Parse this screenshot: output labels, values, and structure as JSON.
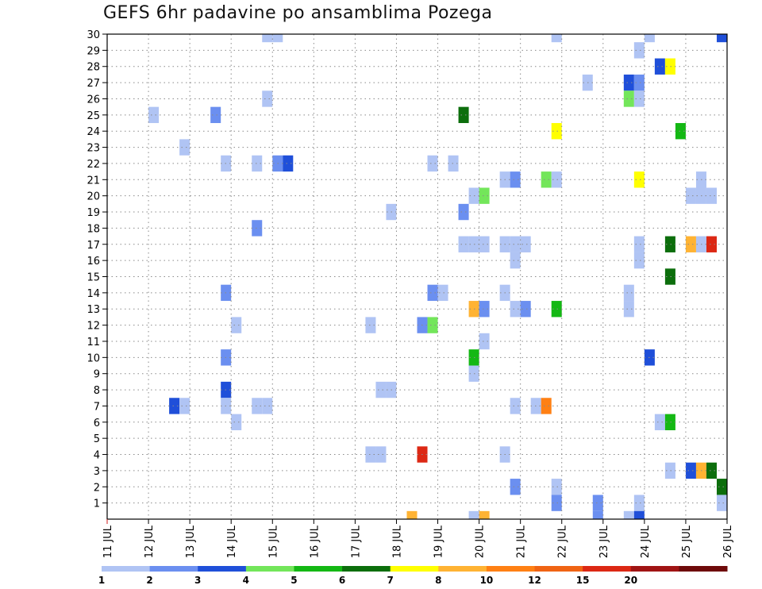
{
  "chart_data": {
    "type": "heatmap",
    "title": "GEFS 6hr padavine po ansamblima Pozega",
    "xlabel": "",
    "ylabel": "",
    "x_ticks": [
      "11 JUL",
      "12 JUL",
      "13 JUL",
      "14 JUL",
      "15 JUL",
      "16 JUL",
      "17 JUL",
      "18 JUL",
      "19 JUL",
      "20 JUL",
      "21 JUL",
      "22 JUL",
      "23 JUL",
      "24 JUL",
      "25 JUL",
      "26 JUL"
    ],
    "xlim": [
      11,
      26
    ],
    "y_ticks": [
      1,
      2,
      3,
      4,
      5,
      6,
      7,
      8,
      9,
      10,
      11,
      12,
      13,
      14,
      15,
      16,
      17,
      18,
      19,
      20,
      21,
      22,
      23,
      24,
      25,
      26,
      27,
      28,
      29,
      30
    ],
    "ylim": [
      0,
      30
    ],
    "grid": true,
    "legend": {
      "placement": "bottom",
      "bins": [
        {
          "label": "1",
          "color": "#b0c4f4"
        },
        {
          "label": "2",
          "color": "#6b8ff0"
        },
        {
          "label": "3",
          "color": "#1f4fd9"
        },
        {
          "label": "4",
          "color": "#73e65a"
        },
        {
          "label": "5",
          "color": "#14b814"
        },
        {
          "label": "6",
          "color": "#0c6e0c"
        },
        {
          "label": "7",
          "color": "#ffff00"
        },
        {
          "label": "8",
          "color": "#ffb333"
        },
        {
          "label": "10",
          "color": "#ff8014"
        },
        {
          "label": "12",
          "color": "#f06414"
        },
        {
          "label": "15",
          "color": "#dc2814"
        },
        {
          "label": "20",
          "color": "#a01414"
        },
        {
          "label": "",
          "color": "#6e0a0a"
        }
      ]
    },
    "cells": [
      {
        "t": 14.75,
        "m": 30,
        "v": 1
      },
      {
        "t": 15.0,
        "m": 30,
        "v": 1
      },
      {
        "t": 21.75,
        "m": 30,
        "v": 1
      },
      {
        "t": 24.0,
        "m": 30,
        "v": 1
      },
      {
        "t": 25.75,
        "m": 30,
        "v": 3
      },
      {
        "t": 23.75,
        "m": 29,
        "v": 1
      },
      {
        "t": 24.25,
        "m": 28,
        "v": 3
      },
      {
        "t": 24.5,
        "m": 28,
        "v": 7
      },
      {
        "t": 22.5,
        "m": 27,
        "v": 1
      },
      {
        "t": 23.5,
        "m": 27,
        "v": 3
      },
      {
        "t": 23.75,
        "m": 27,
        "v": 2
      },
      {
        "t": 14.75,
        "m": 26,
        "v": 1
      },
      {
        "t": 23.5,
        "m": 26,
        "v": 4
      },
      {
        "t": 23.75,
        "m": 26,
        "v": 1
      },
      {
        "t": 12.0,
        "m": 25,
        "v": 1
      },
      {
        "t": 13.5,
        "m": 25,
        "v": 2
      },
      {
        "t": 19.5,
        "m": 25,
        "v": 6
      },
      {
        "t": 21.75,
        "m": 24,
        "v": 7
      },
      {
        "t": 24.75,
        "m": 24,
        "v": 5
      },
      {
        "t": 12.75,
        "m": 23,
        "v": 1
      },
      {
        "t": 13.75,
        "m": 22,
        "v": 1
      },
      {
        "t": 14.5,
        "m": 22,
        "v": 1
      },
      {
        "t": 15.0,
        "m": 22,
        "v": 2
      },
      {
        "t": 15.25,
        "m": 22,
        "v": 3
      },
      {
        "t": 18.75,
        "m": 22,
        "v": 1
      },
      {
        "t": 19.25,
        "m": 22,
        "v": 1
      },
      {
        "t": 20.5,
        "m": 21,
        "v": 1
      },
      {
        "t": 20.75,
        "m": 21,
        "v": 2
      },
      {
        "t": 21.5,
        "m": 21,
        "v": 4
      },
      {
        "t": 21.75,
        "m": 21,
        "v": 1
      },
      {
        "t": 23.75,
        "m": 21,
        "v": 7
      },
      {
        "t": 25.25,
        "m": 21,
        "v": 1
      },
      {
        "t": 19.75,
        "m": 20,
        "v": 1
      },
      {
        "t": 20.0,
        "m": 20,
        "v": 4
      },
      {
        "t": 25.0,
        "m": 20,
        "v": 1
      },
      {
        "t": 25.25,
        "m": 20,
        "v": 1
      },
      {
        "t": 25.5,
        "m": 20,
        "v": 1
      },
      {
        "t": 17.75,
        "m": 19,
        "v": 1
      },
      {
        "t": 19.5,
        "m": 19,
        "v": 2
      },
      {
        "t": 14.5,
        "m": 18,
        "v": 2
      },
      {
        "t": 19.5,
        "m": 17,
        "v": 1
      },
      {
        "t": 19.75,
        "m": 17,
        "v": 1
      },
      {
        "t": 20.0,
        "m": 17,
        "v": 1
      },
      {
        "t": 20.5,
        "m": 17,
        "v": 1
      },
      {
        "t": 20.75,
        "m": 17,
        "v": 1
      },
      {
        "t": 21.0,
        "m": 17,
        "v": 1
      },
      {
        "t": 23.75,
        "m": 17,
        "v": 1
      },
      {
        "t": 24.5,
        "m": 17,
        "v": 6
      },
      {
        "t": 25.0,
        "m": 17,
        "v": 8
      },
      {
        "t": 25.25,
        "m": 17,
        "v": 1
      },
      {
        "t": 25.5,
        "m": 17,
        "v": 15
      },
      {
        "t": 20.75,
        "m": 16,
        "v": 1
      },
      {
        "t": 23.75,
        "m": 16,
        "v": 1
      },
      {
        "t": 24.5,
        "m": 15,
        "v": 6
      },
      {
        "t": 13.75,
        "m": 14,
        "v": 2
      },
      {
        "t": 18.75,
        "m": 14,
        "v": 2
      },
      {
        "t": 19.0,
        "m": 14,
        "v": 1
      },
      {
        "t": 20.5,
        "m": 14,
        "v": 1
      },
      {
        "t": 23.5,
        "m": 14,
        "v": 1
      },
      {
        "t": 19.75,
        "m": 13,
        "v": 8
      },
      {
        "t": 20.0,
        "m": 13,
        "v": 2
      },
      {
        "t": 20.75,
        "m": 13,
        "v": 1
      },
      {
        "t": 21.0,
        "m": 13,
        "v": 2
      },
      {
        "t": 21.75,
        "m": 13,
        "v": 5
      },
      {
        "t": 23.5,
        "m": 13,
        "v": 1
      },
      {
        "t": 14.0,
        "m": 12,
        "v": 1
      },
      {
        "t": 17.25,
        "m": 12,
        "v": 1
      },
      {
        "t": 18.5,
        "m": 12,
        "v": 2
      },
      {
        "t": 18.75,
        "m": 12,
        "v": 4
      },
      {
        "t": 20.0,
        "m": 11,
        "v": 1
      },
      {
        "t": 13.75,
        "m": 10,
        "v": 2
      },
      {
        "t": 19.75,
        "m": 10,
        "v": 5
      },
      {
        "t": 24.0,
        "m": 10,
        "v": 3
      },
      {
        "t": 19.75,
        "m": 9,
        "v": 1
      },
      {
        "t": 13.75,
        "m": 8,
        "v": 3
      },
      {
        "t": 17.5,
        "m": 8,
        "v": 1
      },
      {
        "t": 17.75,
        "m": 8,
        "v": 1
      },
      {
        "t": 12.5,
        "m": 7,
        "v": 3
      },
      {
        "t": 12.75,
        "m": 7,
        "v": 1
      },
      {
        "t": 13.75,
        "m": 7,
        "v": 1
      },
      {
        "t": 14.5,
        "m": 7,
        "v": 1
      },
      {
        "t": 14.75,
        "m": 7,
        "v": 1
      },
      {
        "t": 20.75,
        "m": 7,
        "v": 1
      },
      {
        "t": 21.25,
        "m": 7,
        "v": 1
      },
      {
        "t": 21.5,
        "m": 7,
        "v": 10
      },
      {
        "t": 14.0,
        "m": 6,
        "v": 1
      },
      {
        "t": 24.25,
        "m": 6,
        "v": 1
      },
      {
        "t": 24.5,
        "m": 6,
        "v": 5
      },
      {
        "t": 17.25,
        "m": 4,
        "v": 1
      },
      {
        "t": 17.5,
        "m": 4,
        "v": 1
      },
      {
        "t": 18.5,
        "m": 4,
        "v": 15
      },
      {
        "t": 20.5,
        "m": 4,
        "v": 1
      },
      {
        "t": 24.5,
        "m": 3,
        "v": 1
      },
      {
        "t": 25.0,
        "m": 3,
        "v": 3
      },
      {
        "t": 25.25,
        "m": 3,
        "v": 8
      },
      {
        "t": 25.5,
        "m": 3,
        "v": 6
      },
      {
        "t": 20.75,
        "m": 2,
        "v": 2
      },
      {
        "t": 21.75,
        "m": 2,
        "v": 1
      },
      {
        "t": 25.75,
        "m": 2,
        "v": 6
      },
      {
        "t": 21.75,
        "m": 1,
        "v": 2
      },
      {
        "t": 22.75,
        "m": 1,
        "v": 2
      },
      {
        "t": 23.75,
        "m": 1,
        "v": 1
      },
      {
        "t": 25.75,
        "m": 1,
        "v": 1
      },
      {
        "t": 18.25,
        "m": 0,
        "v": 8
      },
      {
        "t": 19.75,
        "m": 0,
        "v": 1
      },
      {
        "t": 20.0,
        "m": 0,
        "v": 8
      },
      {
        "t": 22.75,
        "m": 0,
        "v": 2
      },
      {
        "t": 23.5,
        "m": 0,
        "v": 1
      },
      {
        "t": 23.75,
        "m": 0,
        "v": 3
      }
    ]
  }
}
